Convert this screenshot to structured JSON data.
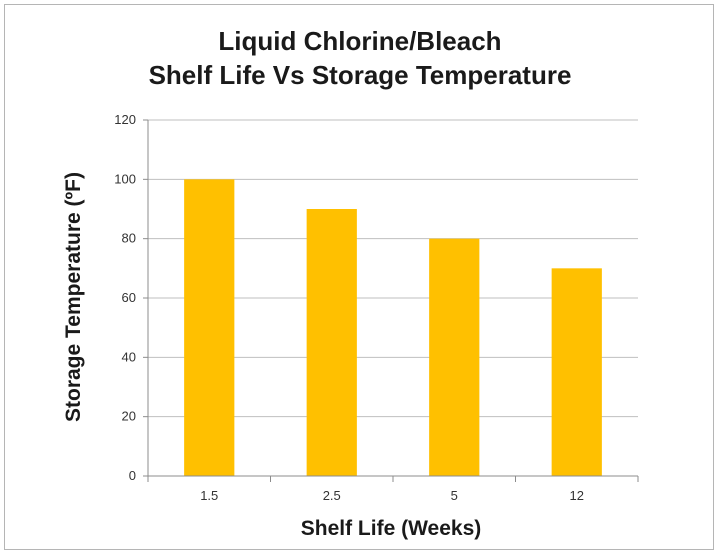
{
  "chart_data": {
    "type": "bar",
    "title": "Liquid Chlorine/Bleach",
    "subtitle": "Shelf Life Vs Storage Temperature",
    "xlabel": "Shelf Life (Weeks)",
    "ylabel": "Storage Temperature (ºF)",
    "categories": [
      "1.5",
      "2.5",
      "5",
      "12"
    ],
    "values": [
      100,
      90,
      80,
      70
    ],
    "ylim": [
      0,
      120
    ],
    "yticks": [
      "0",
      "20",
      "40",
      "60",
      "80",
      "100",
      "120"
    ],
    "grid": true,
    "legend": "none",
    "bar_color": "#FFC000"
  }
}
